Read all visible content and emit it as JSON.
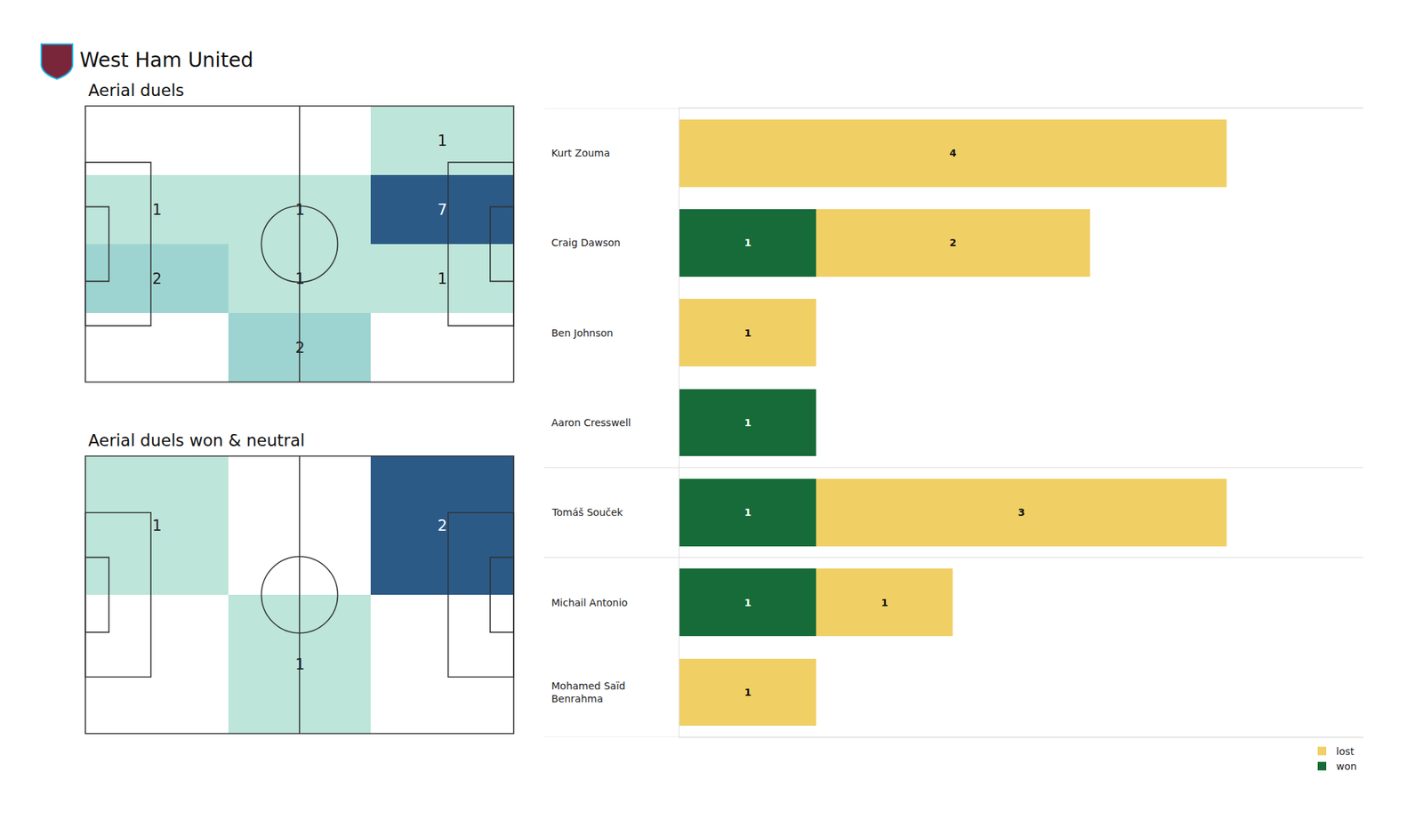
{
  "title": "West Ham United",
  "chart_data": [
    {
      "type": "heatmap",
      "title": "Aerial duels",
      "cells": [
        [
          null,
          null,
          1
        ],
        [
          1,
          1,
          7
        ],
        [
          2,
          1,
          1
        ],
        [
          null,
          2,
          null
        ]
      ],
      "data_labels": true,
      "tick_labels": false
    },
    {
      "type": "heatmap",
      "title": "Aerial duels won & neutral",
      "cells": [
        [
          1,
          null,
          2
        ],
        [
          null,
          1,
          null
        ]
      ],
      "data_labels": true,
      "tick_labels": false
    },
    {
      "type": "bar",
      "orientation": "horizontal",
      "stacked": true,
      "categories": [
        "Kurt Zouma",
        "Craig Dawson",
        "Ben Johnson",
        "Aaron Cresswell",
        "Tomáš Souček",
        "Michail Antonio",
        "Mohamed Saïd Benrahma"
      ],
      "series": [
        {
          "name": "won",
          "color": "#176b38",
          "values": [
            null,
            1,
            null,
            1,
            1,
            1,
            null
          ]
        },
        {
          "name": "lost",
          "color": "#f0cf65",
          "values": [
            4,
            2,
            1,
            null,
            3,
            1,
            1
          ]
        }
      ],
      "xlim": [
        0,
        5
      ],
      "data_labels": true,
      "tick_labels": false,
      "legend": "lower right"
    }
  ]
}
